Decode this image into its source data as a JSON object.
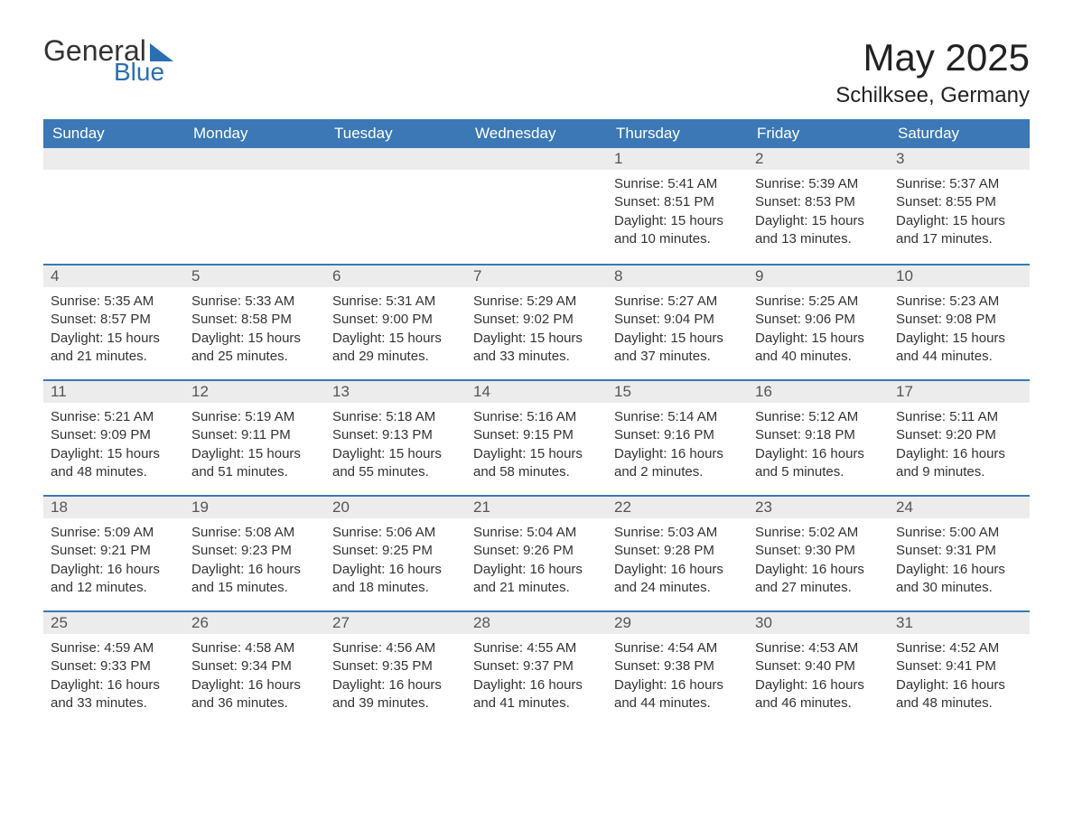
{
  "logo": {
    "word1": "General",
    "word2": "Blue",
    "text_color": "#333333",
    "accent_color": "#2a6fb0"
  },
  "title": {
    "month_year": "May 2025",
    "location": "Schilksee, Germany",
    "title_fontsize": 42,
    "location_fontsize": 24,
    "text_color": "#222222"
  },
  "colors": {
    "header_bg": "#3b78b5",
    "header_text": "#ffffff",
    "daynum_bg": "#ececec",
    "daynum_text": "#555555",
    "body_text": "#333333",
    "row_border": "#3b78b5",
    "page_bg": "#ffffff"
  },
  "weekdays": [
    "Sunday",
    "Monday",
    "Tuesday",
    "Wednesday",
    "Thursday",
    "Friday",
    "Saturday"
  ],
  "weeks": [
    [
      {
        "day": "",
        "sunrise": "",
        "sunset": "",
        "daylight1": "",
        "daylight2": ""
      },
      {
        "day": "",
        "sunrise": "",
        "sunset": "",
        "daylight1": "",
        "daylight2": ""
      },
      {
        "day": "",
        "sunrise": "",
        "sunset": "",
        "daylight1": "",
        "daylight2": ""
      },
      {
        "day": "",
        "sunrise": "",
        "sunset": "",
        "daylight1": "",
        "daylight2": ""
      },
      {
        "day": "1",
        "sunrise": "Sunrise: 5:41 AM",
        "sunset": "Sunset: 8:51 PM",
        "daylight1": "Daylight: 15 hours",
        "daylight2": "and 10 minutes."
      },
      {
        "day": "2",
        "sunrise": "Sunrise: 5:39 AM",
        "sunset": "Sunset: 8:53 PM",
        "daylight1": "Daylight: 15 hours",
        "daylight2": "and 13 minutes."
      },
      {
        "day": "3",
        "sunrise": "Sunrise: 5:37 AM",
        "sunset": "Sunset: 8:55 PM",
        "daylight1": "Daylight: 15 hours",
        "daylight2": "and 17 minutes."
      }
    ],
    [
      {
        "day": "4",
        "sunrise": "Sunrise: 5:35 AM",
        "sunset": "Sunset: 8:57 PM",
        "daylight1": "Daylight: 15 hours",
        "daylight2": "and 21 minutes."
      },
      {
        "day": "5",
        "sunrise": "Sunrise: 5:33 AM",
        "sunset": "Sunset: 8:58 PM",
        "daylight1": "Daylight: 15 hours",
        "daylight2": "and 25 minutes."
      },
      {
        "day": "6",
        "sunrise": "Sunrise: 5:31 AM",
        "sunset": "Sunset: 9:00 PM",
        "daylight1": "Daylight: 15 hours",
        "daylight2": "and 29 minutes."
      },
      {
        "day": "7",
        "sunrise": "Sunrise: 5:29 AM",
        "sunset": "Sunset: 9:02 PM",
        "daylight1": "Daylight: 15 hours",
        "daylight2": "and 33 minutes."
      },
      {
        "day": "8",
        "sunrise": "Sunrise: 5:27 AM",
        "sunset": "Sunset: 9:04 PM",
        "daylight1": "Daylight: 15 hours",
        "daylight2": "and 37 minutes."
      },
      {
        "day": "9",
        "sunrise": "Sunrise: 5:25 AM",
        "sunset": "Sunset: 9:06 PM",
        "daylight1": "Daylight: 15 hours",
        "daylight2": "and 40 minutes."
      },
      {
        "day": "10",
        "sunrise": "Sunrise: 5:23 AM",
        "sunset": "Sunset: 9:08 PM",
        "daylight1": "Daylight: 15 hours",
        "daylight2": "and 44 minutes."
      }
    ],
    [
      {
        "day": "11",
        "sunrise": "Sunrise: 5:21 AM",
        "sunset": "Sunset: 9:09 PM",
        "daylight1": "Daylight: 15 hours",
        "daylight2": "and 48 minutes."
      },
      {
        "day": "12",
        "sunrise": "Sunrise: 5:19 AM",
        "sunset": "Sunset: 9:11 PM",
        "daylight1": "Daylight: 15 hours",
        "daylight2": "and 51 minutes."
      },
      {
        "day": "13",
        "sunrise": "Sunrise: 5:18 AM",
        "sunset": "Sunset: 9:13 PM",
        "daylight1": "Daylight: 15 hours",
        "daylight2": "and 55 minutes."
      },
      {
        "day": "14",
        "sunrise": "Sunrise: 5:16 AM",
        "sunset": "Sunset: 9:15 PM",
        "daylight1": "Daylight: 15 hours",
        "daylight2": "and 58 minutes."
      },
      {
        "day": "15",
        "sunrise": "Sunrise: 5:14 AM",
        "sunset": "Sunset: 9:16 PM",
        "daylight1": "Daylight: 16 hours",
        "daylight2": "and 2 minutes."
      },
      {
        "day": "16",
        "sunrise": "Sunrise: 5:12 AM",
        "sunset": "Sunset: 9:18 PM",
        "daylight1": "Daylight: 16 hours",
        "daylight2": "and 5 minutes."
      },
      {
        "day": "17",
        "sunrise": "Sunrise: 5:11 AM",
        "sunset": "Sunset: 9:20 PM",
        "daylight1": "Daylight: 16 hours",
        "daylight2": "and 9 minutes."
      }
    ],
    [
      {
        "day": "18",
        "sunrise": "Sunrise: 5:09 AM",
        "sunset": "Sunset: 9:21 PM",
        "daylight1": "Daylight: 16 hours",
        "daylight2": "and 12 minutes."
      },
      {
        "day": "19",
        "sunrise": "Sunrise: 5:08 AM",
        "sunset": "Sunset: 9:23 PM",
        "daylight1": "Daylight: 16 hours",
        "daylight2": "and 15 minutes."
      },
      {
        "day": "20",
        "sunrise": "Sunrise: 5:06 AM",
        "sunset": "Sunset: 9:25 PM",
        "daylight1": "Daylight: 16 hours",
        "daylight2": "and 18 minutes."
      },
      {
        "day": "21",
        "sunrise": "Sunrise: 5:04 AM",
        "sunset": "Sunset: 9:26 PM",
        "daylight1": "Daylight: 16 hours",
        "daylight2": "and 21 minutes."
      },
      {
        "day": "22",
        "sunrise": "Sunrise: 5:03 AM",
        "sunset": "Sunset: 9:28 PM",
        "daylight1": "Daylight: 16 hours",
        "daylight2": "and 24 minutes."
      },
      {
        "day": "23",
        "sunrise": "Sunrise: 5:02 AM",
        "sunset": "Sunset: 9:30 PM",
        "daylight1": "Daylight: 16 hours",
        "daylight2": "and 27 minutes."
      },
      {
        "day": "24",
        "sunrise": "Sunrise: 5:00 AM",
        "sunset": "Sunset: 9:31 PM",
        "daylight1": "Daylight: 16 hours",
        "daylight2": "and 30 minutes."
      }
    ],
    [
      {
        "day": "25",
        "sunrise": "Sunrise: 4:59 AM",
        "sunset": "Sunset: 9:33 PM",
        "daylight1": "Daylight: 16 hours",
        "daylight2": "and 33 minutes."
      },
      {
        "day": "26",
        "sunrise": "Sunrise: 4:58 AM",
        "sunset": "Sunset: 9:34 PM",
        "daylight1": "Daylight: 16 hours",
        "daylight2": "and 36 minutes."
      },
      {
        "day": "27",
        "sunrise": "Sunrise: 4:56 AM",
        "sunset": "Sunset: 9:35 PM",
        "daylight1": "Daylight: 16 hours",
        "daylight2": "and 39 minutes."
      },
      {
        "day": "28",
        "sunrise": "Sunrise: 4:55 AM",
        "sunset": "Sunset: 9:37 PM",
        "daylight1": "Daylight: 16 hours",
        "daylight2": "and 41 minutes."
      },
      {
        "day": "29",
        "sunrise": "Sunrise: 4:54 AM",
        "sunset": "Sunset: 9:38 PM",
        "daylight1": "Daylight: 16 hours",
        "daylight2": "and 44 minutes."
      },
      {
        "day": "30",
        "sunrise": "Sunrise: 4:53 AM",
        "sunset": "Sunset: 9:40 PM",
        "daylight1": "Daylight: 16 hours",
        "daylight2": "and 46 minutes."
      },
      {
        "day": "31",
        "sunrise": "Sunrise: 4:52 AM",
        "sunset": "Sunset: 9:41 PM",
        "daylight1": "Daylight: 16 hours",
        "daylight2": "and 48 minutes."
      }
    ]
  ]
}
